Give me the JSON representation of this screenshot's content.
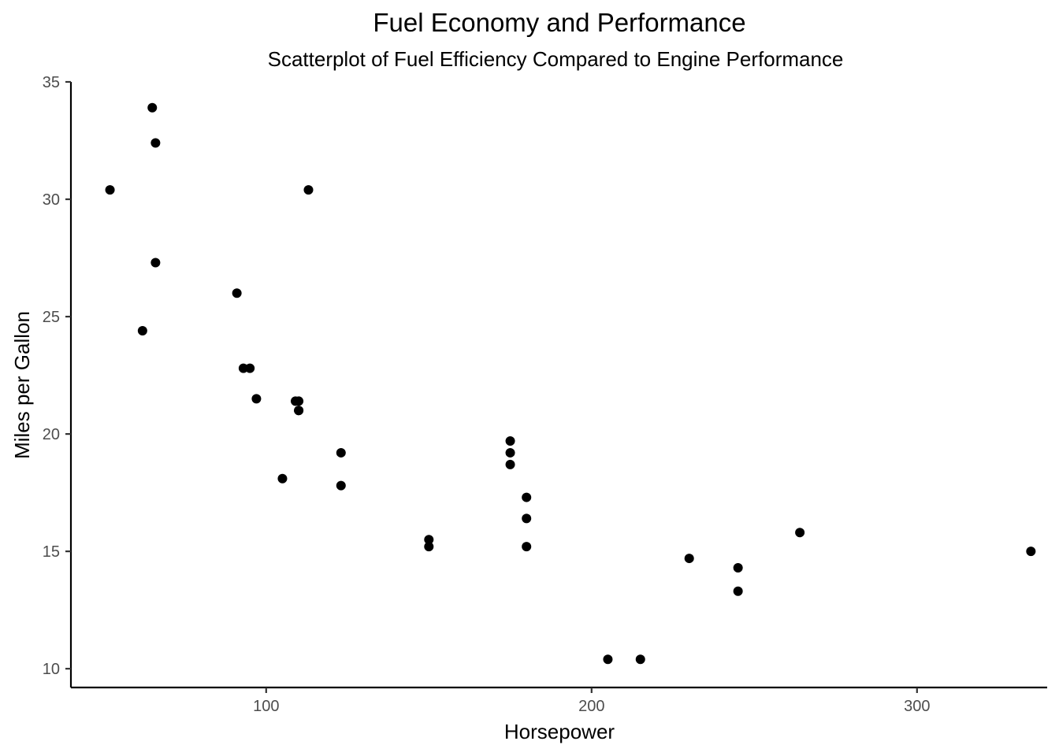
{
  "chart_data": {
    "type": "scatter",
    "title": "Fuel Economy and Performance",
    "subtitle": "Scatterplot of Fuel Efficiency Compared to Engine Performance",
    "xlabel": "Horsepower",
    "ylabel": "Miles per Gallon",
    "xlim": [
      40,
      340
    ],
    "ylim": [
      9.2,
      35
    ],
    "x_ticks": [
      100,
      200,
      300
    ],
    "y_ticks": [
      10,
      15,
      20,
      25,
      30,
      35
    ],
    "x_tick_labels": [
      "100",
      "200",
      "300"
    ],
    "y_tick_labels": [
      "10",
      "15",
      "20",
      "25",
      "30",
      "35"
    ],
    "grid": false,
    "legend": "none",
    "point_color": "#000000",
    "points": [
      {
        "x": 110,
        "y": 21.0
      },
      {
        "x": 110,
        "y": 21.0
      },
      {
        "x": 93,
        "y": 22.8
      },
      {
        "x": 110,
        "y": 21.4
      },
      {
        "x": 175,
        "y": 18.7
      },
      {
        "x": 105,
        "y": 18.1
      },
      {
        "x": 245,
        "y": 14.3
      },
      {
        "x": 62,
        "y": 24.4
      },
      {
        "x": 95,
        "y": 22.8
      },
      {
        "x": 123,
        "y": 19.2
      },
      {
        "x": 123,
        "y": 17.8
      },
      {
        "x": 180,
        "y": 16.4
      },
      {
        "x": 180,
        "y": 17.3
      },
      {
        "x": 180,
        "y": 15.2
      },
      {
        "x": 205,
        "y": 10.4
      },
      {
        "x": 215,
        "y": 10.4
      },
      {
        "x": 230,
        "y": 14.7
      },
      {
        "x": 66,
        "y": 32.4
      },
      {
        "x": 52,
        "y": 30.4
      },
      {
        "x": 65,
        "y": 33.9
      },
      {
        "x": 97,
        "y": 21.5
      },
      {
        "x": 150,
        "y": 15.5
      },
      {
        "x": 150,
        "y": 15.2
      },
      {
        "x": 245,
        "y": 13.3
      },
      {
        "x": 175,
        "y": 19.2
      },
      {
        "x": 66,
        "y": 27.3
      },
      {
        "x": 91,
        "y": 26.0
      },
      {
        "x": 113,
        "y": 30.4
      },
      {
        "x": 264,
        "y": 15.8
      },
      {
        "x": 175,
        "y": 19.7
      },
      {
        "x": 335,
        "y": 15.0
      },
      {
        "x": 109,
        "y": 21.4
      }
    ]
  }
}
